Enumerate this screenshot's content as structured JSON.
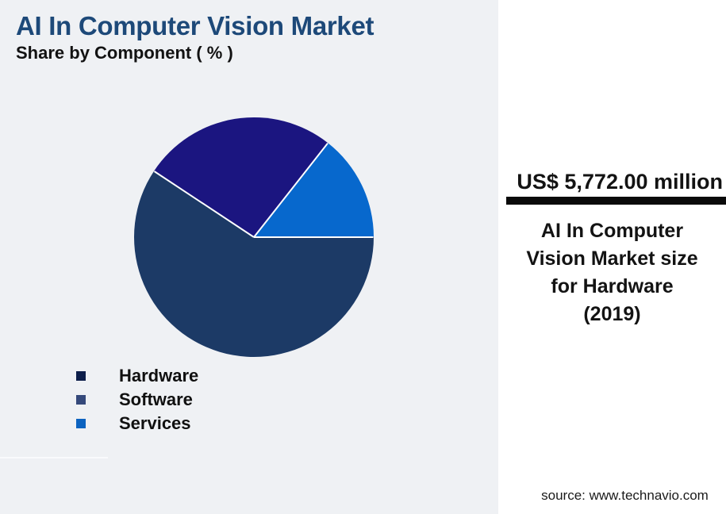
{
  "title": "AI In Computer Vision Market",
  "subtitle": "Share by Component ( % )",
  "chart_data": {
    "type": "pie",
    "title": "AI In Computer Vision Market - Share by Component (%)",
    "series": [
      {
        "name": "Hardware",
        "value": 59.3,
        "slice_color": "#1c3a66",
        "legend_color": "#0d1e4a"
      },
      {
        "name": "Software",
        "value": 26.3,
        "slice_color": "#1b1580",
        "legend_color": "#35497b"
      },
      {
        "name": "Services",
        "value": 14.4,
        "slice_color": "#0768cd",
        "legend_color": "#0c63c0"
      }
    ],
    "start_angle_deg": 0,
    "direction": "counterclockwise-from-east-reverse-series-order",
    "separator_color": "#ffffff",
    "legend_position": "bottom-left"
  },
  "panel": {
    "value": "US$ 5,772.00 million",
    "description_lines": [
      "AI In Computer",
      "Vision Market size",
      "for Hardware",
      "(2019)"
    ],
    "source": "source: www.technavio.com"
  },
  "colors": {
    "background": "#eff1f4",
    "panel_background": "#ffffff",
    "title": "#1d4979",
    "divider_bar": "#0a0a0a"
  }
}
